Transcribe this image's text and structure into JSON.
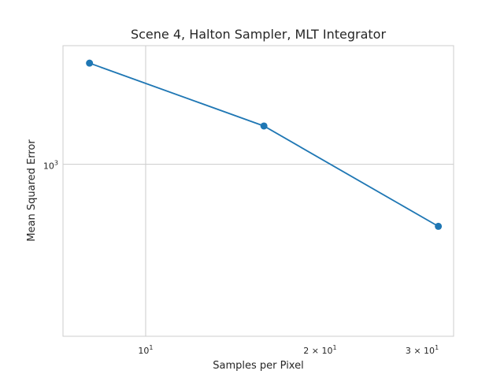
{
  "chart_data": {
    "type": "line",
    "title": "Scene 4, Halton Sampler, MLT Integrator",
    "xlabel": "Samples per Pixel",
    "ylabel": "Mean Squared Error",
    "x_scale": "log",
    "y_scale": "log",
    "xlim": [
      7.2,
      34
    ],
    "ylim": [
      410,
      1850
    ],
    "grid": true,
    "legend": false,
    "x_ticks": [
      {
        "value": 10,
        "base": "10",
        "exp": "1"
      },
      {
        "value": 20,
        "base": "2 × 10",
        "exp": "1"
      },
      {
        "value": 30,
        "base": "3 × 10",
        "exp": "1"
      }
    ],
    "y_ticks": [
      {
        "value": 1000,
        "base": "10",
        "exp": "3"
      }
    ],
    "series": [
      {
        "x": [
          8,
          16,
          32
        ],
        "y": [
          1690,
          1220,
          725
        ],
        "color": "#1f77b4",
        "marker": "circle"
      }
    ]
  }
}
